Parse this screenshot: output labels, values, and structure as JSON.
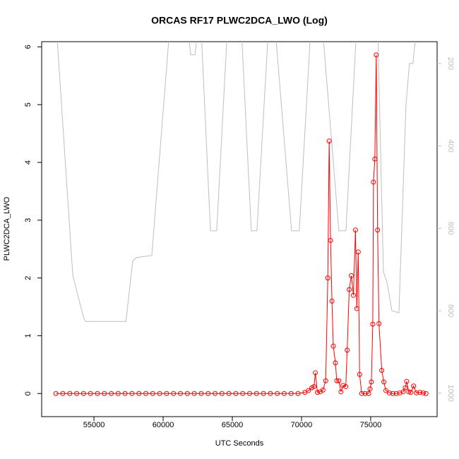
{
  "chart_data": {
    "type": "line",
    "title": "ORCAS RF17 PLWC2DCA_LWO (Log)",
    "xlabel": "UTC Seconds",
    "ylabel": "PLWC2DCA_LWO",
    "xlim": [
      51220,
      79800
    ],
    "xticks": [
      55000,
      60000,
      65000,
      70000,
      75000
    ],
    "ylim": [
      -0.4,
      6.09
    ],
    "yticks": [
      0,
      1,
      2,
      3,
      4,
      5,
      6
    ],
    "y2lim": [
      1057,
      147
    ],
    "y2ticks": [
      200,
      400,
      600,
      800,
      1000
    ],
    "series": [
      {
        "color": "#bebebe",
        "axis": "y2",
        "markers": false,
        "x": [
          52300,
          53470,
          54250,
          54400,
          57310,
          57800,
          58050,
          59180,
          60460,
          61810,
          61990,
          62300,
          62500,
          62750,
          63420,
          63870,
          64640,
          65660,
          66370,
          66780,
          67600,
          68110,
          69280,
          69840,
          70660,
          71530,
          72700,
          73210,
          73970,
          75510,
          75920,
          76170,
          76270,
          76530,
          77040,
          77550,
          77800,
          78050,
          78300
        ],
        "values": [
          120,
          714,
          817,
          826,
          826,
          680,
          671,
          666,
          120,
          120,
          179,
          179,
          120,
          120,
          606,
          606,
          120,
          120,
          606,
          606,
          120,
          120,
          606,
          606,
          120,
          120,
          606,
          606,
          120,
          120,
          705,
          730,
          748,
          800,
          805,
          300,
          200,
          200,
          120
        ]
      },
      {
        "color": "#ff0000",
        "axis": "y",
        "markers": true,
        "x": [
          52250,
          52750,
          53250,
          53750,
          54250,
          54750,
          55250,
          55750,
          56250,
          56750,
          57250,
          57750,
          58250,
          58750,
          59250,
          59750,
          60250,
          60750,
          61250,
          61750,
          62250,
          62750,
          63250,
          63750,
          64250,
          64750,
          65250,
          65750,
          66250,
          66750,
          67250,
          67750,
          68250,
          68750,
          69250,
          69750,
          70250,
          70500,
          70750,
          70900,
          71000,
          71150,
          71350,
          71550,
          71750,
          71900,
          72000,
          72100,
          72200,
          72300,
          72450,
          72550,
          72700,
          72850,
          73000,
          73200,
          73300,
          73450,
          73600,
          73750,
          73900,
          74000,
          74100,
          74200,
          74350,
          74600,
          74850,
          74950,
          75050,
          75150,
          75200,
          75300,
          75400,
          75500,
          75600,
          75800,
          75950,
          76100,
          76350,
          76600,
          76850,
          77100,
          77350,
          77500,
          77600,
          77750,
          77900,
          78100,
          78300,
          78550,
          78800,
          79000
        ],
        "values": [
          0,
          0,
          0,
          0,
          0,
          0,
          0,
          0,
          0,
          0,
          0,
          0,
          0,
          0,
          0,
          0,
          0,
          0,
          0,
          0,
          0,
          0,
          0,
          0,
          0,
          0,
          0,
          0,
          0,
          0,
          0,
          0,
          0,
          0,
          0,
          0,
          0.02,
          0.05,
          0.1,
          0.12,
          0.36,
          0.02,
          0.03,
          0.06,
          0.22,
          2.0,
          4.37,
          2.65,
          1.6,
          0.82,
          0.53,
          0.22,
          0.22,
          0.03,
          0.14,
          0.12,
          0.75,
          1.8,
          2.04,
          1.7,
          2.83,
          1.47,
          2.45,
          0.33,
          0,
          0,
          0,
          0.08,
          0.2,
          1.2,
          3.66,
          4.06,
          5.86,
          2.83,
          1.21,
          0.4,
          0.2,
          0.05,
          0.01,
          0,
          0,
          0.01,
          0.03,
          0.1,
          0.21,
          0.03,
          0.02,
          0.13,
          0.01,
          0.02,
          0.01,
          0
        ]
      }
    ]
  }
}
